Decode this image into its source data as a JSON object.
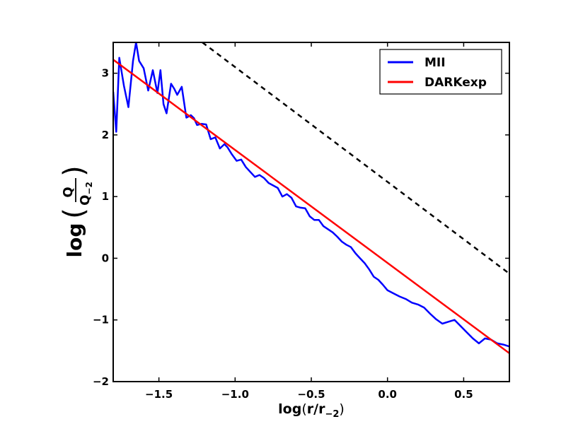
{
  "chart_data": {
    "type": "line",
    "xlabel": {
      "main": "log",
      "inner": "r/r",
      "sub": "−2"
    },
    "ylabel": {
      "main": "log",
      "num": "Q",
      "den": "Q",
      "den_sub": "−2"
    },
    "xlim": [
      -1.8,
      0.8
    ],
    "ylim": [
      -2,
      3.5
    ],
    "xticks": [
      -1.5,
      -1.0,
      -0.5,
      0.0,
      0.5
    ],
    "xtick_labels": [
      "−1.5",
      "−1.0",
      "−0.5",
      "0.0",
      "0.5"
    ],
    "yticks": [
      -2,
      -1,
      0,
      1,
      2,
      3
    ],
    "ytick_labels": [
      "−2",
      "−1",
      "0",
      "1",
      "2",
      "3"
    ],
    "grid": false,
    "legend_position": "top-right",
    "series": [
      {
        "name": "MII",
        "color": "#0000ff",
        "style": "solid",
        "x": [
          -1.8,
          -1.78,
          -1.76,
          -1.73,
          -1.7,
          -1.67,
          -1.65,
          -1.63,
          -1.6,
          -1.57,
          -1.54,
          -1.51,
          -1.49,
          -1.47,
          -1.45,
          -1.42,
          -1.4,
          -1.38,
          -1.35,
          -1.32,
          -1.29,
          -1.27,
          -1.25,
          -1.22,
          -1.19,
          -1.16,
          -1.13,
          -1.1,
          -1.07,
          -1.05,
          -1.02,
          -0.99,
          -0.96,
          -0.93,
          -0.9,
          -0.87,
          -0.84,
          -0.81,
          -0.78,
          -0.75,
          -0.72,
          -0.69,
          -0.66,
          -0.63,
          -0.6,
          -0.57,
          -0.54,
          -0.51,
          -0.48,
          -0.45,
          -0.42,
          -0.39,
          -0.36,
          -0.33,
          -0.3,
          -0.27,
          -0.24,
          -0.21,
          -0.18,
          -0.15,
          -0.12,
          -0.09,
          -0.06,
          -0.03,
          0.0,
          0.04,
          0.08,
          0.12,
          0.16,
          0.2,
          0.24,
          0.28,
          0.32,
          0.36,
          0.4,
          0.44,
          0.48,
          0.52,
          0.56,
          0.6,
          0.64,
          0.68,
          0.72,
          0.76,
          0.8
        ],
        "y": [
          2.7,
          2.05,
          3.25,
          2.8,
          2.45,
          3.2,
          3.5,
          3.2,
          3.08,
          2.72,
          3.05,
          2.68,
          3.05,
          2.5,
          2.35,
          2.83,
          2.75,
          2.65,
          2.78,
          2.28,
          2.32,
          2.27,
          2.16,
          2.18,
          2.17,
          1.93,
          1.96,
          1.78,
          1.85,
          1.8,
          1.68,
          1.58,
          1.6,
          1.48,
          1.4,
          1.32,
          1.35,
          1.3,
          1.22,
          1.18,
          1.14,
          1.0,
          1.04,
          0.98,
          0.84,
          0.82,
          0.81,
          0.68,
          0.62,
          0.62,
          0.52,
          0.47,
          0.42,
          0.35,
          0.27,
          0.22,
          0.18,
          0.08,
          0.0,
          -0.08,
          -0.18,
          -0.3,
          -0.35,
          -0.43,
          -0.52,
          -0.57,
          -0.62,
          -0.66,
          -0.72,
          -0.75,
          -0.8,
          -0.9,
          -0.99,
          -1.06,
          -1.03,
          -1.0,
          -1.1,
          -1.2,
          -1.3,
          -1.38,
          -1.3,
          -1.32,
          -1.38,
          -1.4,
          -1.43
        ]
      },
      {
        "name": "DARKexp",
        "color": "#ff0000",
        "style": "solid",
        "x": [
          -1.8,
          0.8
        ],
        "y": [
          3.22,
          -1.54
        ]
      },
      {
        "color": "#000000",
        "style": "dashed",
        "x": [
          -1.215,
          0.8
        ],
        "y": [
          3.5,
          -0.25
        ]
      }
    ]
  }
}
